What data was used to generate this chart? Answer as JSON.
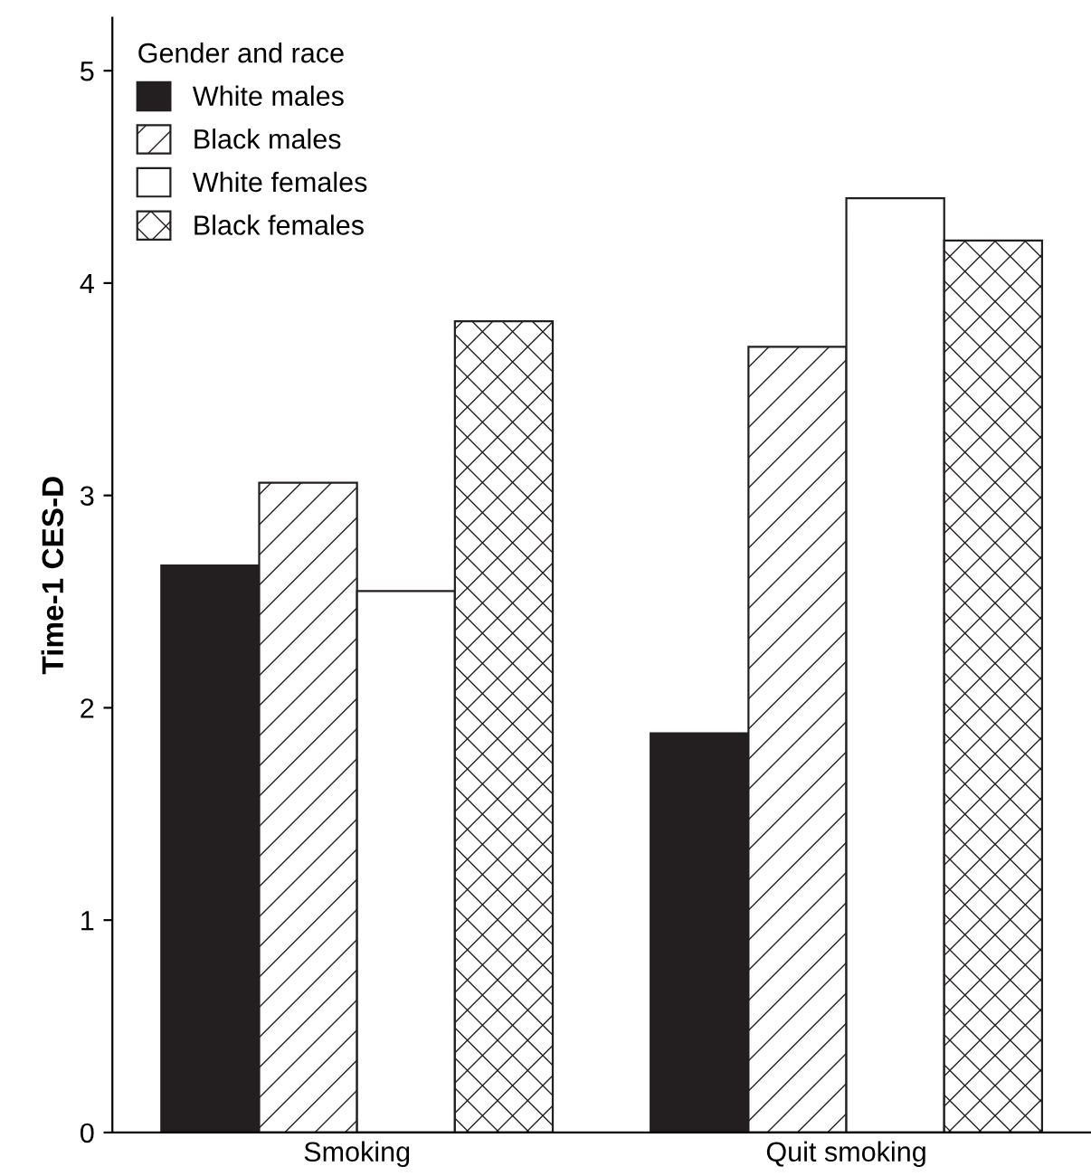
{
  "chart_data": {
    "type": "bar",
    "ylabel": "Time-1 CES-D",
    "legend_title": "Gender and race",
    "legend": "top left",
    "categories": [
      "Smoking",
      "Quit smoking"
    ],
    "series": [
      {
        "name": "White males",
        "color": "#231f20",
        "values": [
          2.67,
          1.88
        ]
      },
      {
        "name": "Black males",
        "color": "#ffffff",
        "values": [
          3.06,
          3.7
        ]
      },
      {
        "name": "White females",
        "color": "#ffffff",
        "values": [
          2.55,
          4.4
        ]
      },
      {
        "name": "Black females",
        "color": "#ffffff",
        "values": [
          3.82,
          4.2
        ]
      }
    ],
    "ylim": [
      0,
      5.25
    ],
    "yticks": [
      0,
      1,
      2,
      3,
      4,
      5
    ],
    "grid": false
  }
}
